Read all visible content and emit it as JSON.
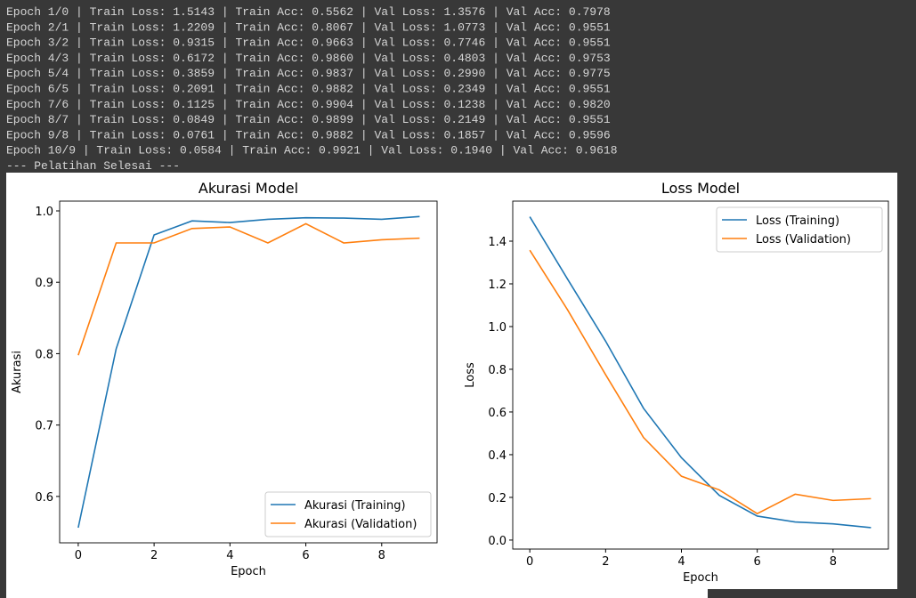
{
  "console": {
    "lines": [
      "Epoch 1/0 | Train Loss: 1.5143 | Train Acc: 0.5562 | Val Loss: 1.3576 | Val Acc: 0.7978",
      "Epoch 2/1 | Train Loss: 1.2209 | Train Acc: 0.8067 | Val Loss: 1.0773 | Val Acc: 0.9551",
      "Epoch 3/2 | Train Loss: 0.9315 | Train Acc: 0.9663 | Val Loss: 0.7746 | Val Acc: 0.9551",
      "Epoch 4/3 | Train Loss: 0.6172 | Train Acc: 0.9860 | Val Loss: 0.4803 | Val Acc: 0.9753",
      "Epoch 5/4 | Train Loss: 0.3859 | Train Acc: 0.9837 | Val Loss: 0.2990 | Val Acc: 0.9775",
      "Epoch 6/5 | Train Loss: 0.2091 | Train Acc: 0.9882 | Val Loss: 0.2349 | Val Acc: 0.9551",
      "Epoch 7/6 | Train Loss: 0.1125 | Train Acc: 0.9904 | Val Loss: 0.1238 | Val Acc: 0.9820",
      "Epoch 8/7 | Train Loss: 0.0849 | Train Acc: 0.9899 | Val Loss: 0.2149 | Val Acc: 0.9551",
      "Epoch 9/8 | Train Loss: 0.0761 | Train Acc: 0.9882 | Val Loss: 0.1857 | Val Acc: 0.9596",
      "Epoch 10/9 | Train Loss: 0.0584 | Train Acc: 0.9921 | Val Loss: 0.1940 | Val Acc: 0.9618",
      "--- Pelatihan Selesai ---"
    ]
  },
  "chart_data": [
    {
      "type": "line",
      "title": "Akurasi Model",
      "x_label": "Epoch",
      "y_label": "Akurasi",
      "x": [
        0,
        1,
        2,
        3,
        4,
        5,
        6,
        7,
        8,
        9
      ],
      "series": [
        {
          "name": "Akurasi (Training)",
          "color": "#1f77b4",
          "values": [
            0.5562,
            0.8067,
            0.9663,
            0.986,
            0.9837,
            0.9882,
            0.9904,
            0.9899,
            0.9882,
            0.9921
          ]
        },
        {
          "name": "Akurasi (Validation)",
          "color": "#ff7f0e",
          "values": [
            0.7978,
            0.9551,
            0.9551,
            0.9753,
            0.9775,
            0.9551,
            0.982,
            0.9551,
            0.9596,
            0.9618
          ]
        }
      ],
      "xlim": [
        -0.49,
        9.46
      ],
      "xticks": [
        0,
        2,
        4,
        6,
        8
      ],
      "ylim": [
        0.535,
        1.0137
      ],
      "yticks": [
        0.6,
        0.7,
        0.8,
        0.9,
        {
          "value": 1,
          "label": "1.0"
        }
      ],
      "grid": false,
      "legend": "lower-right"
    },
    {
      "type": "line",
      "title": "Loss Model",
      "x_label": "Epoch",
      "y_label": "Loss",
      "x": [
        0,
        1,
        2,
        3,
        4,
        5,
        6,
        7,
        8,
        9
      ],
      "series": [
        {
          "name": "Loss (Training)",
          "color": "#1f77b4",
          "values": [
            1.5143,
            1.2209,
            0.9315,
            0.6172,
            0.3859,
            0.2091,
            0.1125,
            0.0849,
            0.0761,
            0.0584
          ]
        },
        {
          "name": "Loss (Validation)",
          "color": "#ff7f0e",
          "values": [
            1.3576,
            1.0773,
            0.7746,
            0.4803,
            0.299,
            0.2349,
            0.1238,
            0.2149,
            0.1857,
            0.194
          ]
        }
      ],
      "xlim": [
        -0.45,
        9.46
      ],
      "xticks": [
        0,
        2,
        4,
        6,
        8
      ],
      "ylim": [
        -0.042,
        1.5875
      ],
      "yticks": [
        {
          "value": 0,
          "label": "0.0"
        },
        0.2,
        0.4,
        0.6,
        0.8,
        {
          "value": 1,
          "label": "1.0"
        },
        1.2,
        1.4
      ],
      "grid": false,
      "legend": "upper-right"
    }
  ]
}
